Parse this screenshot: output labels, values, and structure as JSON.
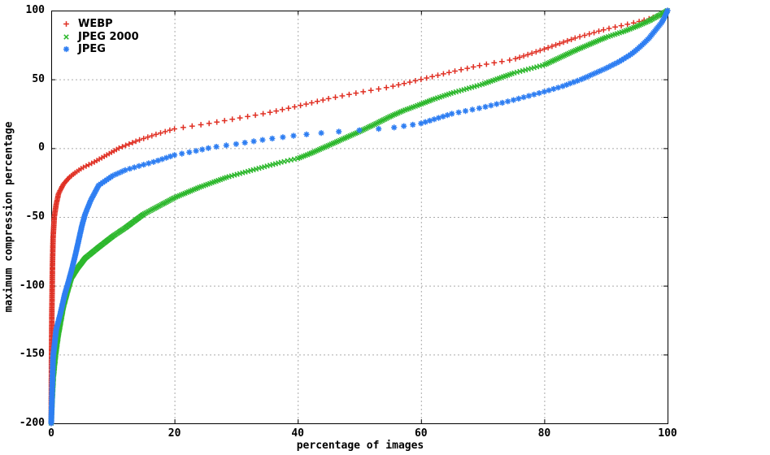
{
  "chart_data": {
    "type": "scatter",
    "title": "",
    "xlabel": "percentage of images",
    "ylabel": "maximum compression percentage",
    "xlim": [
      0,
      100
    ],
    "ylim": [
      -200,
      100
    ],
    "xticks": [
      0,
      20,
      40,
      60,
      80,
      100
    ],
    "yticks": [
      100,
      50,
      0,
      -50,
      -100,
      -150,
      -200
    ],
    "grid": true,
    "legend": {
      "position": "top-left"
    },
    "series": [
      {
        "name": "WEBP",
        "marker": "plus",
        "color": "#e03024",
        "y_step": 1.0,
        "points": [
          [
            0,
            -200
          ],
          [
            0.05,
            -150
          ],
          [
            0.1,
            -120
          ],
          [
            0.2,
            -85
          ],
          [
            0.3,
            -65
          ],
          [
            0.5,
            -50
          ],
          [
            0.8,
            -41
          ],
          [
            1.2,
            -33
          ],
          [
            2,
            -26
          ],
          [
            3,
            -21
          ],
          [
            4,
            -17.5
          ],
          [
            5,
            -14.5
          ],
          [
            7,
            -10
          ],
          [
            9,
            -5
          ],
          [
            11,
            0
          ],
          [
            14,
            5.5
          ],
          [
            17,
            10
          ],
          [
            20,
            14
          ],
          [
            25,
            17.5
          ],
          [
            30,
            21.5
          ],
          [
            35,
            25.5
          ],
          [
            40,
            30.5
          ],
          [
            45,
            36
          ],
          [
            50,
            40.5
          ],
          [
            55,
            44.5
          ],
          [
            60,
            50
          ],
          [
            65,
            55.5
          ],
          [
            70,
            60.5
          ],
          [
            75,
            64.5
          ],
          [
            80,
            72
          ],
          [
            85,
            80
          ],
          [
            90,
            86.5
          ],
          [
            93,
            89.5
          ],
          [
            95,
            91.5
          ],
          [
            97,
            94
          ],
          [
            99,
            97
          ],
          [
            100,
            100
          ]
        ]
      },
      {
        "name": "JPEG 2000",
        "marker": "cross",
        "color": "#2db82d",
        "y_step": 0.55,
        "points": [
          [
            0,
            -200
          ],
          [
            0.4,
            -165
          ],
          [
            0.8,
            -148
          ],
          [
            1.2,
            -135
          ],
          [
            1.6,
            -125
          ],
          [
            2,
            -115
          ],
          [
            2.6,
            -105
          ],
          [
            3.3,
            -94
          ],
          [
            4.3,
            -87
          ],
          [
            5.5,
            -80
          ],
          [
            7.7,
            -72
          ],
          [
            10,
            -64
          ],
          [
            12,
            -58
          ],
          [
            15,
            -48
          ],
          [
            20,
            -36
          ],
          [
            24,
            -28.5
          ],
          [
            28.6,
            -21
          ],
          [
            33,
            -15.5
          ],
          [
            37.5,
            -10
          ],
          [
            40,
            -7.5
          ],
          [
            42,
            -4
          ],
          [
            45,
            2
          ],
          [
            48,
            8
          ],
          [
            50,
            12
          ],
          [
            53,
            18.5
          ],
          [
            55,
            23
          ],
          [
            57,
            27
          ],
          [
            60,
            32
          ],
          [
            62,
            35.5
          ],
          [
            65,
            40
          ],
          [
            70,
            46.5
          ],
          [
            75,
            54.5
          ],
          [
            80,
            60.5
          ],
          [
            85,
            71
          ],
          [
            90,
            80.5
          ],
          [
            93,
            85
          ],
          [
            95,
            88.5
          ],
          [
            97,
            92.5
          ],
          [
            99,
            97.5
          ],
          [
            100,
            100
          ]
        ]
      },
      {
        "name": "JPEG",
        "marker": "asterisk",
        "color": "#2e7ef2",
        "y_step": 1.0,
        "points": [
          [
            0,
            -200
          ],
          [
            0.3,
            -152
          ],
          [
            0.8,
            -132
          ],
          [
            1.5,
            -120
          ],
          [
            2.2,
            -106
          ],
          [
            2.8,
            -97
          ],
          [
            3.4,
            -87
          ],
          [
            4,
            -76
          ],
          [
            4.5,
            -66
          ],
          [
            5,
            -56
          ],
          [
            5.5,
            -48
          ],
          [
            6.4,
            -38
          ],
          [
            7.7,
            -27
          ],
          [
            10,
            -20
          ],
          [
            12,
            -16
          ],
          [
            15,
            -12
          ],
          [
            17,
            -9.5
          ],
          [
            20,
            -5
          ],
          [
            23,
            -2.5
          ],
          [
            26,
            0.5
          ],
          [
            30,
            3
          ],
          [
            35,
            6.5
          ],
          [
            40,
            9.4
          ],
          [
            45,
            11.5
          ],
          [
            50,
            13
          ],
          [
            55,
            14.6
          ],
          [
            58,
            16.5
          ],
          [
            60,
            18
          ],
          [
            65,
            25
          ],
          [
            70,
            29.5
          ],
          [
            75,
            35
          ],
          [
            80,
            41
          ],
          [
            83,
            45
          ],
          [
            86,
            50
          ],
          [
            88,
            54
          ],
          [
            90,
            58
          ],
          [
            92,
            62.5
          ],
          [
            94,
            68
          ],
          [
            95,
            71.5
          ],
          [
            96,
            75.5
          ],
          [
            97,
            80
          ],
          [
            98,
            85.5
          ],
          [
            99,
            91
          ],
          [
            99.5,
            95
          ],
          [
            100,
            100
          ]
        ]
      }
    ],
    "colors": {
      "background": "#ffffff",
      "grid": "#ababab",
      "axis": "#000000",
      "text": "#000000"
    }
  }
}
